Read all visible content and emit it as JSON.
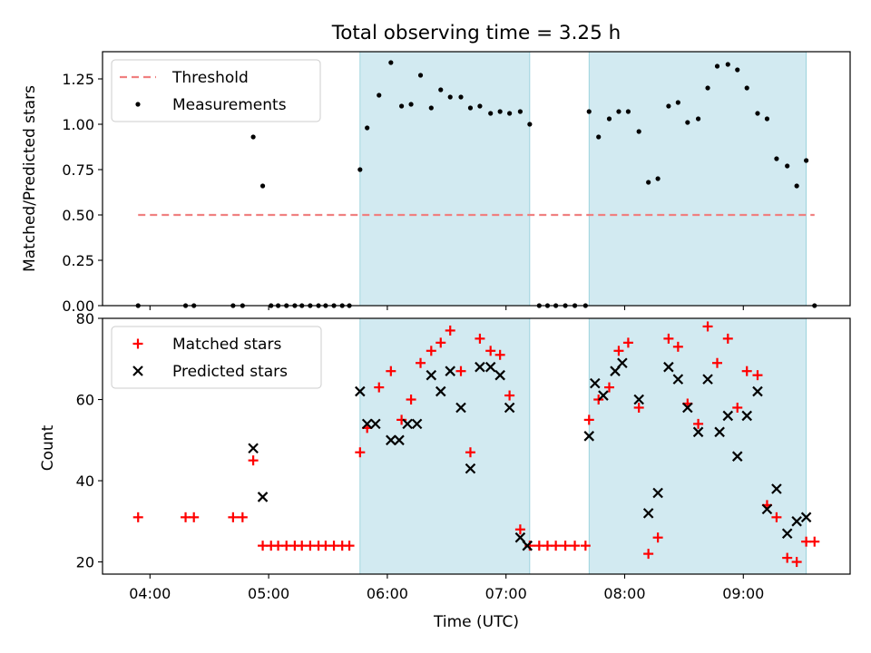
{
  "chart_data": [
    {
      "type": "scatter",
      "title": "Total observing time = 3.25 h",
      "xlabel": "",
      "ylabel": "Matched/Predicted stars",
      "x_unit": "hours UTC",
      "xlim": [
        3.6,
        9.9
      ],
      "ylim": [
        0,
        1.4
      ],
      "yticks": [
        "0.00",
        "0.25",
        "0.50",
        "0.75",
        "1.00",
        "1.25"
      ],
      "xticks": [
        4,
        5,
        6,
        7,
        8,
        9
      ],
      "grid": false,
      "legend_position": "upper-left",
      "shaded_spans": [
        [
          5.77,
          7.2
        ],
        [
          7.7,
          9.53
        ]
      ],
      "shade_color": "#add8e6",
      "threshold": {
        "name": "Threshold",
        "value": 0.5,
        "x_range": [
          3.9,
          9.6
        ],
        "color": "#f08080"
      },
      "series": [
        {
          "name": "Measurements",
          "color": "#000000",
          "x": [
            3.9,
            4.3,
            4.37,
            4.7,
            4.78,
            4.87,
            4.95,
            5.02,
            5.08,
            5.15,
            5.22,
            5.28,
            5.35,
            5.42,
            5.48,
            5.55,
            5.62,
            5.68,
            5.77,
            5.83,
            5.93,
            6.03,
            6.12,
            6.2,
            6.28,
            6.37,
            6.45,
            6.53,
            6.62,
            6.7,
            6.78,
            6.87,
            6.95,
            7.03,
            7.12,
            7.2,
            7.28,
            7.35,
            7.42,
            7.5,
            7.58,
            7.67,
            7.7,
            7.78,
            7.87,
            7.95,
            8.03,
            8.12,
            8.2,
            8.28,
            8.37,
            8.45,
            8.53,
            8.62,
            8.7,
            8.78,
            8.87,
            8.95,
            9.03,
            9.12,
            9.2,
            9.28,
            9.37,
            9.45,
            9.53,
            9.6
          ],
          "y": [
            0,
            0,
            0,
            0,
            0,
            0.93,
            0.66,
            0,
            0,
            0,
            0,
            0,
            0,
            0,
            0,
            0,
            0,
            0,
            0.75,
            0.98,
            1.16,
            1.34,
            1.1,
            1.11,
            1.27,
            1.09,
            1.19,
            1.15,
            1.15,
            1.09,
            1.1,
            1.06,
            1.07,
            1.06,
            1.07,
            1.0,
            0,
            0,
            0,
            0,
            0,
            0,
            1.07,
            0.93,
            1.03,
            1.07,
            1.07,
            0.96,
            0.68,
            0.7,
            1.1,
            1.12,
            1.01,
            1.03,
            1.2,
            1.32,
            1.33,
            1.3,
            1.2,
            1.06,
            1.03,
            0.81,
            0.77,
            0.66,
            0.8,
            0
          ]
        }
      ]
    },
    {
      "type": "scatter",
      "title": "",
      "xlabel": "Time (UTC)",
      "ylabel": "Count",
      "x_unit": "hours UTC",
      "xlim": [
        3.6,
        9.9
      ],
      "ylim": [
        17,
        80
      ],
      "yticks": [
        "20",
        "40",
        "60",
        "80"
      ],
      "xticks": [
        4,
        5,
        6,
        7,
        8,
        9
      ],
      "xtick_labels": [
        "04:00",
        "05:00",
        "06:00",
        "07:00",
        "08:00",
        "09:00"
      ],
      "grid": false,
      "legend_position": "upper-left",
      "shaded_spans": [
        [
          5.77,
          7.2
        ],
        [
          7.7,
          9.53
        ]
      ],
      "shade_color": "#add8e6",
      "series": [
        {
          "name": "Matched stars",
          "marker": "+",
          "color": "#ff0000",
          "x": [
            3.9,
            4.3,
            4.37,
            4.7,
            4.78,
            4.87,
            4.95,
            5.02,
            5.08,
            5.15,
            5.22,
            5.28,
            5.35,
            5.42,
            5.48,
            5.55,
            5.62,
            5.68,
            5.77,
            5.83,
            5.93,
            6.03,
            6.12,
            6.2,
            6.28,
            6.37,
            6.45,
            6.53,
            6.62,
            6.7,
            6.78,
            6.87,
            6.95,
            7.03,
            7.12,
            7.2,
            7.28,
            7.35,
            7.42,
            7.5,
            7.58,
            7.67,
            7.7,
            7.78,
            7.87,
            7.95,
            8.03,
            8.12,
            8.2,
            8.28,
            8.37,
            8.45,
            8.53,
            8.62,
            8.7,
            8.78,
            8.87,
            8.95,
            9.03,
            9.12,
            9.2,
            9.28,
            9.37,
            9.45,
            9.53,
            9.6
          ],
          "y": [
            31,
            31,
            31,
            31,
            31,
            45,
            24,
            24,
            24,
            24,
            24,
            24,
            24,
            24,
            24,
            24,
            24,
            24,
            47,
            53,
            63,
            67,
            55,
            60,
            69,
            72,
            74,
            77,
            67,
            47,
            75,
            72,
            71,
            61,
            28,
            24,
            24,
            24,
            24,
            24,
            24,
            24,
            55,
            60,
            63,
            72,
            74,
            58,
            22,
            26,
            75,
            73,
            59,
            54,
            78,
            69,
            75,
            58,
            67,
            66,
            34,
            31,
            21,
            20,
            25,
            25
          ]
        },
        {
          "name": "Predicted stars",
          "marker": "x",
          "color": "#000000",
          "x": [
            4.87,
            4.95,
            5.77,
            5.83,
            5.9,
            6.03,
            6.1,
            6.17,
            6.25,
            6.37,
            6.45,
            6.53,
            6.62,
            6.7,
            6.78,
            6.87,
            6.95,
            7.03,
            7.12,
            7.18,
            7.7,
            7.75,
            7.82,
            7.92,
            7.98,
            8.12,
            8.2,
            8.28,
            8.37,
            8.45,
            8.53,
            8.62,
            8.7,
            8.8,
            8.87,
            8.95,
            9.03,
            9.12,
            9.2,
            9.28,
            9.37,
            9.45,
            9.53
          ],
          "y": [
            48,
            36,
            62,
            54,
            54,
            50,
            50,
            54,
            54,
            66,
            62,
            67,
            58,
            43,
            68,
            68,
            66,
            58,
            26,
            24,
            51,
            64,
            61,
            67,
            69,
            60,
            32,
            37,
            68,
            65,
            58,
            52,
            65,
            52,
            56,
            46,
            56,
            62,
            33,
            38,
            27,
            30,
            31
          ]
        }
      ]
    }
  ]
}
